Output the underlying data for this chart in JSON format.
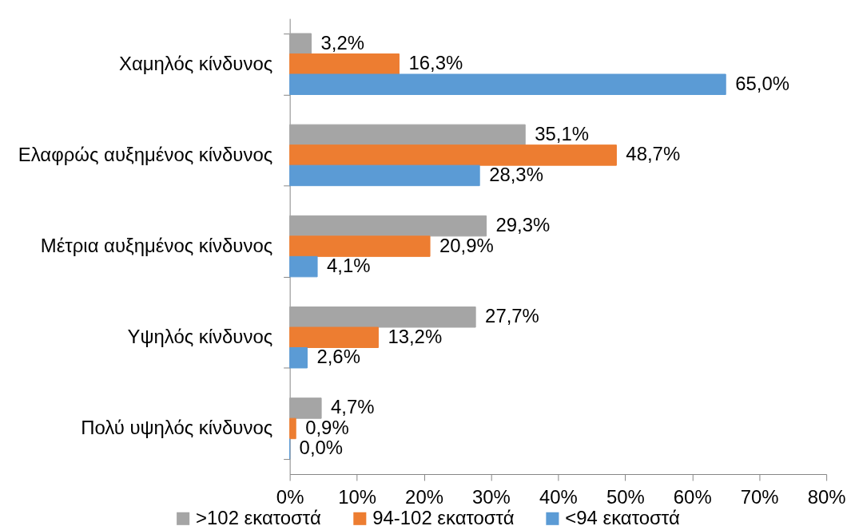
{
  "chart_data": {
    "type": "bar",
    "orientation": "horizontal",
    "categories": [
      "Χαμηλός κίνδυνος",
      "Ελαφρώς αυξημένος κίνδυνος",
      "Μέτρια αυξημένος κίνδυνος",
      "Υψηλός κίνδυνος",
      "Πολύ υψηλός κίνδυνος"
    ],
    "series": [
      {
        "name": ">102 εκατοστά",
        "color": "#a5a5a5",
        "values": [
          3.2,
          35.1,
          29.3,
          27.7,
          4.7
        ],
        "value_labels": [
          "3,2%",
          "35,1%",
          "29,3%",
          "27,7%",
          "4,7%"
        ]
      },
      {
        "name": "94-102 εκατοστά",
        "color": "#ed7d31",
        "values": [
          16.3,
          48.7,
          20.9,
          13.2,
          0.9
        ],
        "value_labels": [
          "16,3%",
          "48,7%",
          "20,9%",
          "13,2%",
          "0,9%"
        ]
      },
      {
        "name": "<94 εκατοστά",
        "color": "#5b9bd5",
        "values": [
          65.0,
          28.3,
          4.1,
          2.6,
          0.0
        ],
        "value_labels": [
          "65,0%",
          "28,3%",
          "4,1%",
          "2,6%",
          "0,0%"
        ]
      }
    ],
    "xlim": [
      0,
      80
    ],
    "xticks": [
      {
        "value": 0,
        "label": "0%"
      },
      {
        "value": 10,
        "label": "10%"
      },
      {
        "value": 20,
        "label": "20%"
      },
      {
        "value": 30,
        "label": "30%"
      },
      {
        "value": 40,
        "label": "40%"
      },
      {
        "value": 50,
        "label": "50%"
      },
      {
        "value": 60,
        "label": "60%"
      },
      {
        "value": 70,
        "label": "70%"
      },
      {
        "value": 80,
        "label": "80%"
      }
    ],
    "legend": "bottom"
  }
}
